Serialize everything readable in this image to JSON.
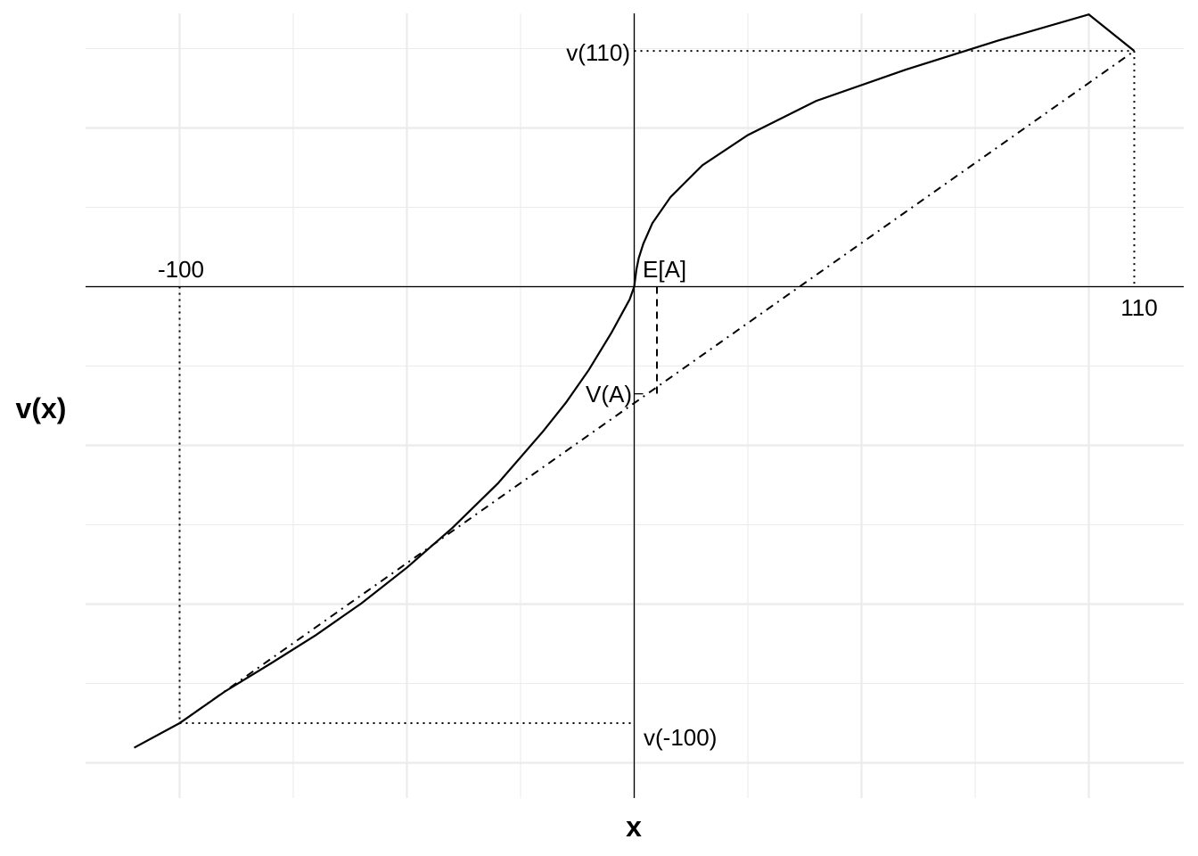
{
  "chart_data": {
    "type": "line",
    "title": "",
    "xlabel": "x",
    "ylabel": "v(x)",
    "xlim": [
      -120,
      121
    ],
    "ylim": [
      -66.5,
      31.7
    ],
    "grid": true,
    "series": [
      {
        "style": "solid",
        "x": [
          -110,
          -100,
          -90,
          -80,
          -70,
          -60,
          -50,
          -40,
          -30,
          -20,
          -15,
          -10,
          -5,
          -3,
          -1,
          0,
          0.5,
          1,
          2,
          4,
          8,
          15,
          25,
          40,
          60,
          80,
          100,
          110
        ],
        "y": [
          -58.1,
          -55,
          -51,
          -47.5,
          -43.9,
          -39.9,
          -35.4,
          -30.4,
          -24.8,
          -18.2,
          -14.6,
          -10.5,
          -5.8,
          -3.7,
          -1.6,
          0,
          2.2,
          3.6,
          5.4,
          8,
          11.3,
          15.3,
          19.1,
          23.4,
          27.4,
          31,
          34.3,
          29.7
        ]
      },
      {
        "style": "dash-dot",
        "x": [
          -100,
          110
        ],
        "y": [
          -55,
          29.7
        ]
      }
    ],
    "guides": {
      "x_markers": [
        "-100",
        "110"
      ],
      "y_markers": [
        "v(110)",
        "v(-100)",
        "V(A)"
      ],
      "expectation_label": "E[A]",
      "expected_value_x": 5,
      "certainty_equivalent_y": -13.5
    }
  },
  "labels": {
    "x_neg": "-100",
    "x_pos": "110",
    "v_pos": "v(110)",
    "v_neg": "v(-100)",
    "va": "V(A)",
    "ea": "E[A]",
    "xlabel": "x",
    "ylabel": "v(x)"
  }
}
